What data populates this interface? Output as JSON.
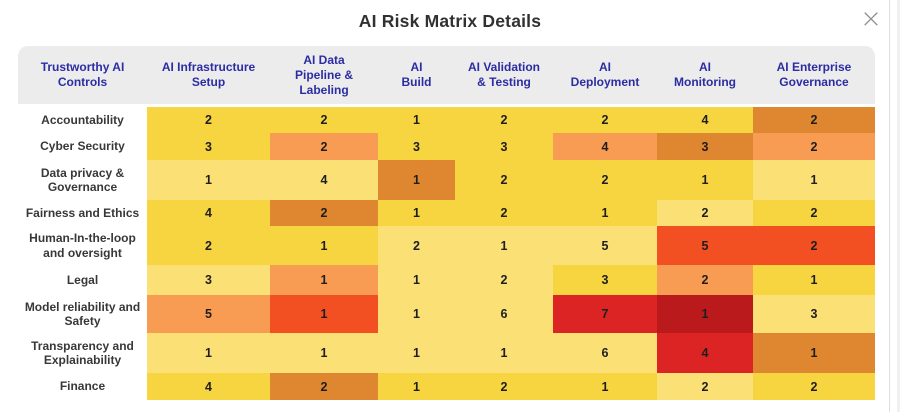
{
  "modal": {
    "title": "AI Risk Matrix Details",
    "close_glyph": "×"
  },
  "palette": {
    "y1": "#FBE175",
    "y2": "#F6D540",
    "o1": "#F89C53",
    "o2": "#DE8630",
    "r1": "#F25022",
    "r2": "#DD2425",
    "r3": "#BB1A1D"
  },
  "matrix": {
    "corner_header": "Trustworthy AI\nControls",
    "columns": [
      "AI Infrastructure\nSetup",
      "AI Data\nPipeline &\nLabeling",
      "AI\nBuild",
      "AI Validation\n& Testing",
      "AI\nDeployment",
      "AI\nMonitoring",
      "AI Enterprise\nGovernance"
    ],
    "rows": [
      {
        "label": "Accountability",
        "cells": [
          {
            "value": "2",
            "color": "y2"
          },
          {
            "value": "2",
            "color": "y2"
          },
          {
            "value": "1",
            "color": "y2"
          },
          {
            "value": "2",
            "color": "y2"
          },
          {
            "value": "2",
            "color": "y2"
          },
          {
            "value": "4",
            "color": "y2"
          },
          {
            "value": "2",
            "color": "o2"
          }
        ]
      },
      {
        "label": "Cyber Security",
        "cells": [
          {
            "value": "3",
            "color": "y2"
          },
          {
            "value": "2",
            "color": "o1"
          },
          {
            "value": "3",
            "color": "y2"
          },
          {
            "value": "3",
            "color": "y2"
          },
          {
            "value": "4",
            "color": "o1"
          },
          {
            "value": "3",
            "color": "o2"
          },
          {
            "value": "2",
            "color": "o1"
          }
        ]
      },
      {
        "label": "Data privacy & Governance",
        "cells": [
          {
            "value": "1",
            "color": "y1"
          },
          {
            "value": "4",
            "color": "y1"
          },
          {
            "value": "1",
            "color": "o2"
          },
          {
            "value": "2",
            "color": "y2"
          },
          {
            "value": "2",
            "color": "y2"
          },
          {
            "value": "1",
            "color": "y2"
          },
          {
            "value": "1",
            "color": "y1"
          }
        ]
      },
      {
        "label": "Fairness and Ethics",
        "cells": [
          {
            "value": "4",
            "color": "y2"
          },
          {
            "value": "2",
            "color": "o2"
          },
          {
            "value": "1",
            "color": "y2"
          },
          {
            "value": "2",
            "color": "y2"
          },
          {
            "value": "1",
            "color": "y2"
          },
          {
            "value": "2",
            "color": "y1"
          },
          {
            "value": "2",
            "color": "y2"
          }
        ]
      },
      {
        "label": "Human-In-the-loop and oversight",
        "cells": [
          {
            "value": "2",
            "color": "y2"
          },
          {
            "value": "1",
            "color": "y2"
          },
          {
            "value": "2",
            "color": "y1"
          },
          {
            "value": "1",
            "color": "y1"
          },
          {
            "value": "5",
            "color": "y1"
          },
          {
            "value": "5",
            "color": "r1"
          },
          {
            "value": "2",
            "color": "r1"
          }
        ]
      },
      {
        "label": "Legal",
        "cells": [
          {
            "value": "3",
            "color": "y1"
          },
          {
            "value": "1",
            "color": "o1"
          },
          {
            "value": "1",
            "color": "y1"
          },
          {
            "value": "2",
            "color": "y1"
          },
          {
            "value": "3",
            "color": "y2"
          },
          {
            "value": "2",
            "color": "o1"
          },
          {
            "value": "1",
            "color": "y2"
          }
        ]
      },
      {
        "label": "Model reliability and Safety",
        "cells": [
          {
            "value": "5",
            "color": "o1"
          },
          {
            "value": "1",
            "color": "r1"
          },
          {
            "value": "1",
            "color": "y1"
          },
          {
            "value": "6",
            "color": "y1"
          },
          {
            "value": "7",
            "color": "r2"
          },
          {
            "value": "1",
            "color": "r3"
          },
          {
            "value": "3",
            "color": "y1"
          }
        ]
      },
      {
        "label": "Transparency and Explainability",
        "cells": [
          {
            "value": "1",
            "color": "y1"
          },
          {
            "value": "1",
            "color": "y1"
          },
          {
            "value": "1",
            "color": "y1"
          },
          {
            "value": "1",
            "color": "y1"
          },
          {
            "value": "6",
            "color": "y1"
          },
          {
            "value": "4",
            "color": "r2"
          },
          {
            "value": "1",
            "color": "o2"
          }
        ]
      },
      {
        "label": "Finance",
        "cells": [
          {
            "value": "4",
            "color": "y2"
          },
          {
            "value": "2",
            "color": "o2"
          },
          {
            "value": "1",
            "color": "y2"
          },
          {
            "value": "2",
            "color": "y2"
          },
          {
            "value": "1",
            "color": "y2"
          },
          {
            "value": "2",
            "color": "y1"
          },
          {
            "value": "2",
            "color": "y2"
          }
        ]
      }
    ]
  }
}
